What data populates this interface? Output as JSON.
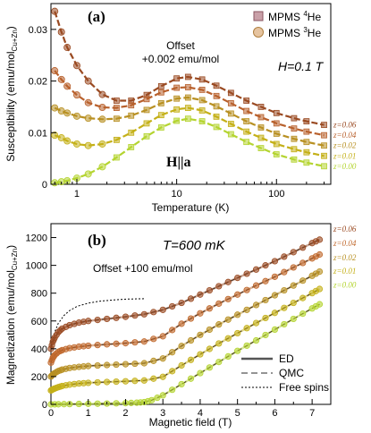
{
  "chart_data": [
    {
      "type": "scatter",
      "panel_label": "(a)",
      "xlabel": "Temperature (K)",
      "ylabel": "Susceptibility (emu/mol",
      "ylabel_sub": "Cu+Zn",
      "ylabel_end": ")",
      "xscale": "log",
      "xlim": [
        0.55,
        350
      ],
      "ylim": [
        0,
        0.035
      ],
      "xticks": [
        1,
        10,
        100
      ],
      "xtick_labels": [
        "1",
        "10",
        "100"
      ],
      "yticks": [
        0,
        0.01,
        0.02,
        0.03
      ],
      "ytick_labels": [
        "0",
        "0.01",
        "0.02",
        "0.03"
      ],
      "annotation_offset": [
        "Offset",
        "+0.002 emu/mol"
      ],
      "annotation_field": "H=0.1 T",
      "annotation_direction": "H||a",
      "legend": [
        {
          "label": "MPMS",
          "sup": "4",
          "suffix": "He",
          "marker": "square"
        },
        {
          "label": "MPMS",
          "sup": "3",
          "suffix": "He",
          "marker": "circle"
        }
      ],
      "legend_position": "top-right",
      "series": [
        {
          "name": "z=0.06",
          "color": "#9a4a22",
          "offset": 0.008,
          "x": [
            0.6,
            0.7,
            0.8,
            1,
            1.3,
            1.8,
            2.5,
            3.5,
            5,
            7,
            10,
            13,
            18,
            25,
            35,
            50,
            70,
            100,
            150,
            200,
            300
          ],
          "values": [
            0.0255,
            0.0215,
            0.0185,
            0.015,
            0.012,
            0.0094,
            0.0082,
            0.0082,
            0.0093,
            0.011,
            0.0125,
            0.0128,
            0.0123,
            0.0111,
            0.0097,
            0.0082,
            0.007,
            0.0058,
            0.0048,
            0.0042,
            0.0035
          ]
        },
        {
          "name": "z=0.04",
          "color": "#b8602c",
          "offset": 0.006,
          "x": [
            0.6,
            0.7,
            0.8,
            1,
            1.3,
            1.8,
            2.5,
            3.5,
            5,
            7,
            10,
            13,
            18,
            25,
            35,
            50,
            70,
            100,
            150,
            200,
            300
          ],
          "values": [
            0.016,
            0.0143,
            0.013,
            0.0113,
            0.0098,
            0.0089,
            0.0088,
            0.0093,
            0.0105,
            0.0118,
            0.0127,
            0.0128,
            0.0123,
            0.0111,
            0.0097,
            0.0082,
            0.007,
            0.0058,
            0.0048,
            0.0042,
            0.0035
          ]
        },
        {
          "name": "z=0.02",
          "color": "#b89022",
          "offset": 0.004,
          "x": [
            0.6,
            0.7,
            0.8,
            1,
            1.3,
            1.8,
            2.5,
            3.5,
            5,
            7,
            10,
            13,
            18,
            25,
            35,
            50,
            70,
            100,
            150,
            200,
            300
          ],
          "values": [
            0.0108,
            0.0102,
            0.0098,
            0.0092,
            0.0088,
            0.0086,
            0.0087,
            0.0093,
            0.0104,
            0.0117,
            0.0126,
            0.0128,
            0.0123,
            0.0111,
            0.0097,
            0.0082,
            0.007,
            0.0058,
            0.0048,
            0.0042,
            0.0035
          ]
        },
        {
          "name": "z=0.01",
          "color": "#c4b018",
          "offset": 0.002,
          "x": [
            0.6,
            0.7,
            0.8,
            1,
            1.3,
            1.8,
            2.5,
            3.5,
            5,
            7,
            10,
            13,
            18,
            25,
            35,
            50,
            70,
            100,
            150,
            200,
            300
          ],
          "values": [
            0.0075,
            0.007,
            0.0064,
            0.0058,
            0.0055,
            0.0058,
            0.0066,
            0.008,
            0.0098,
            0.0114,
            0.0125,
            0.0128,
            0.0123,
            0.0111,
            0.0097,
            0.0082,
            0.007,
            0.0058,
            0.0048,
            0.0042,
            0.0035
          ]
        },
        {
          "name": "z=0.00",
          "color": "#b4d430",
          "offset": 0.0,
          "x": [
            0.6,
            0.7,
            0.8,
            1,
            1.3,
            1.8,
            2.5,
            3.5,
            5,
            7,
            10,
            13,
            18,
            25,
            35,
            50,
            70,
            100,
            150,
            200,
            300
          ],
          "values": [
            0.0003,
            0.0005,
            0.0007,
            0.0012,
            0.002,
            0.0034,
            0.0052,
            0.0072,
            0.0093,
            0.011,
            0.0123,
            0.0127,
            0.0122,
            0.0111,
            0.0097,
            0.0082,
            0.007,
            0.0058,
            0.0048,
            0.0042,
            0.0035
          ]
        }
      ]
    },
    {
      "type": "scatter",
      "panel_label": "(b)",
      "xlabel": "Magnetic field (T)",
      "ylabel": "Magnetization (emu/mol",
      "ylabel_sub": "Cu+Zn",
      "ylabel_end": ")",
      "xlim": [
        0,
        7.5
      ],
      "ylim": [
        0,
        1300
      ],
      "xticks": [
        0,
        1,
        2,
        3,
        4,
        5,
        6,
        7
      ],
      "xtick_labels": [
        "0",
        "1",
        "2",
        "3",
        "4",
        "5",
        "6",
        "7"
      ],
      "yticks": [
        0,
        200,
        400,
        600,
        800,
        1000,
        1200
      ],
      "ytick_labels": [
        "0",
        "200",
        "400",
        "600",
        "800",
        "1000",
        "1200"
      ],
      "annotation_temperature": "T=600 mK",
      "annotation_offset": "Offset +100 emu/mol",
      "legend": [
        {
          "label": "ED",
          "style": "solid"
        },
        {
          "label": "QMC",
          "style": "dashed"
        },
        {
          "label": "Free spins",
          "style": "dotted"
        }
      ],
      "legend_position": "bottom-right",
      "free_spins": {
        "x": [
          0,
          0.1,
          0.2,
          0.35,
          0.5,
          0.7,
          1.0,
          1.3,
          1.7,
          2.1,
          2.5
        ],
        "values": [
          400,
          520,
          585,
          640,
          675,
          705,
          728,
          742,
          752,
          758,
          760
        ]
      },
      "series": [
        {
          "name": "z=0.06",
          "color": "#9a4a22",
          "x": [
            0,
            0.05,
            0.1,
            0.2,
            0.3,
            0.5,
            0.75,
            1.0,
            1.5,
            2.0,
            2.5,
            3.0,
            3.5,
            4.0,
            4.5,
            5.0,
            5.5,
            6.0,
            6.5,
            7.0,
            7.2
          ],
          "values": [
            400,
            450,
            480,
            520,
            545,
            570,
            588,
            600,
            615,
            630,
            648,
            680,
            730,
            790,
            850,
            910,
            970,
            1030,
            1095,
            1160,
            1185
          ]
        },
        {
          "name": "z=0.04",
          "color": "#c0682c",
          "x": [
            0,
            0.05,
            0.1,
            0.2,
            0.3,
            0.5,
            0.75,
            1.0,
            1.5,
            2.0,
            2.5,
            3.0,
            3.5,
            4.0,
            4.5,
            5.0,
            5.5,
            6.0,
            6.5,
            7.0,
            7.2
          ],
          "values": [
            300,
            335,
            355,
            378,
            390,
            405,
            415,
            422,
            432,
            440,
            452,
            490,
            580,
            655,
            725,
            790,
            855,
            918,
            985,
            1050,
            1078
          ]
        },
        {
          "name": "z=0.02",
          "color": "#b89022",
          "x": [
            0,
            0.05,
            0.1,
            0.2,
            0.3,
            0.5,
            0.75,
            1.0,
            1.5,
            2.0,
            2.5,
            3.0,
            3.5,
            4.0,
            4.5,
            5.0,
            5.5,
            6.0,
            6.5,
            7.0,
            7.2
          ],
          "values": [
            200,
            215,
            225,
            240,
            250,
            262,
            270,
            276,
            283,
            289,
            296,
            330,
            420,
            500,
            575,
            645,
            715,
            785,
            855,
            925,
            955
          ]
        },
        {
          "name": "z=0.01",
          "color": "#c4b018",
          "x": [
            0,
            0.05,
            0.1,
            0.2,
            0.3,
            0.5,
            0.75,
            1.0,
            1.5,
            2.0,
            2.5,
            3.0,
            3.5,
            4.0,
            4.5,
            5.0,
            5.5,
            6.0,
            6.5,
            7.0,
            7.2
          ],
          "values": [
            100,
            108,
            114,
            124,
            132,
            142,
            150,
            155,
            161,
            166,
            172,
            198,
            280,
            360,
            438,
            512,
            585,
            658,
            730,
            800,
            830
          ]
        },
        {
          "name": "z=0.00",
          "color": "#b4d430",
          "x": [
            0,
            0.2,
            0.5,
            1.0,
            1.5,
            2.0,
            2.3,
            2.5,
            2.7,
            3.0,
            3.5,
            4.0,
            4.5,
            5.0,
            5.5,
            6.0,
            6.5,
            7.0,
            7.2
          ],
          "values": [
            0,
            1,
            2,
            4,
            6,
            9,
            12,
            16,
            30,
            65,
            145,
            225,
            305,
            385,
            460,
            538,
            615,
            690,
            720
          ]
        }
      ]
    }
  ]
}
